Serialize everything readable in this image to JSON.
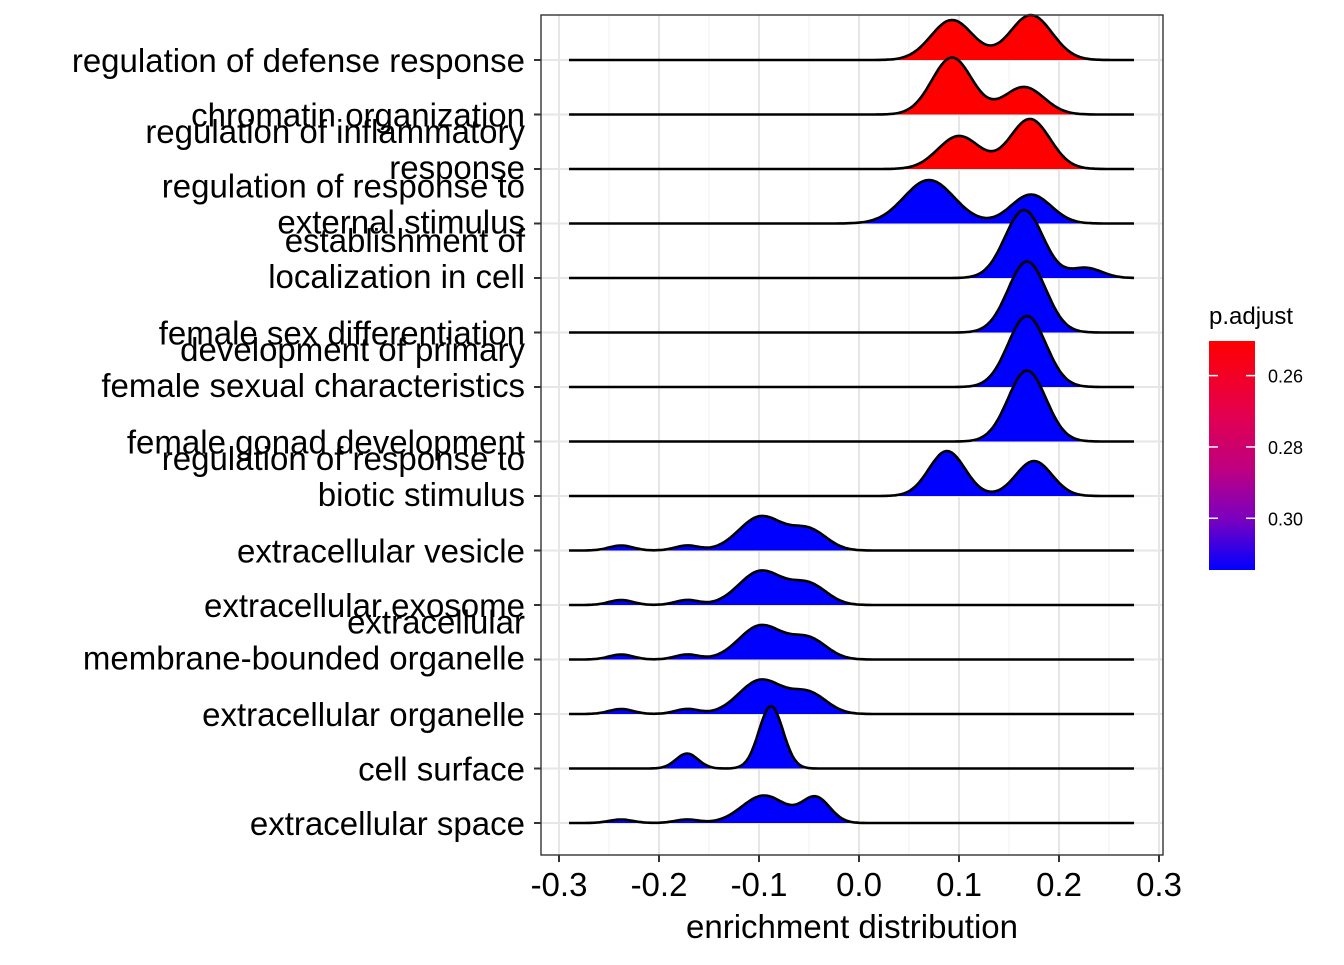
{
  "chart_data": {
    "type": "ridgeline",
    "xlabel": "enrichment distribution",
    "xlim": [
      -0.31,
      0.3
    ],
    "x_ticks": [
      -0.3,
      -0.2,
      -0.1,
      0.0,
      0.1,
      0.2,
      0.3
    ],
    "x_tick_labels": [
      "-0.3",
      "-0.2",
      "-0.1",
      "0.0",
      "0.1",
      "0.2",
      "0.3"
    ],
    "grid": true,
    "legend": {
      "title": "p.adjust",
      "position": "right",
      "type": "colorbar",
      "range": [
        0.2503,
        0.3145
      ],
      "ticks": [
        0.26,
        0.28,
        0.3
      ],
      "tick_labels": [
        "0.26",
        "0.28",
        "0.30"
      ],
      "low_color": "#FF0000",
      "high_color": "#0000FF"
    },
    "ridge_range": [
      -0.29,
      0.275
    ],
    "series": [
      {
        "label_lines": [
          "regulation of defense response"
        ],
        "color": "#FF0000",
        "peaks": [
          [
            0.093,
            0.021,
            0.8
          ],
          [
            0.172,
            0.021,
            0.9
          ]
        ]
      },
      {
        "label_lines": [
          "chromatin organization"
        ],
        "color": "#FF0000",
        "peaks": [
          [
            0.093,
            0.02,
            1.14
          ],
          [
            0.165,
            0.02,
            0.55
          ]
        ]
      },
      {
        "label_lines": [
          "regulation of inflammatory",
          "response"
        ],
        "color": "#FF0000",
        "peaks": [
          [
            0.1,
            0.021,
            0.66
          ],
          [
            0.171,
            0.02,
            1.0
          ]
        ]
      },
      {
        "label_lines": [
          "regulation of response to",
          "external stimulus"
        ],
        "color": "#0000FF",
        "peaks": [
          [
            0.07,
            0.025,
            0.87
          ],
          [
            0.172,
            0.02,
            0.58
          ]
        ]
      },
      {
        "label_lines": [
          "establishment of",
          "localization in cell"
        ],
        "color": "#0000FF",
        "peaks": [
          [
            0.165,
            0.019,
            1.36
          ],
          [
            0.227,
            0.016,
            0.2
          ]
        ]
      },
      {
        "label_lines": [
          "female sex differentiation"
        ],
        "color": "#0000FF",
        "peaks": [
          [
            0.168,
            0.019,
            1.42
          ]
        ]
      },
      {
        "label_lines": [
          "development of primary",
          "female sexual characteristics"
        ],
        "color": "#0000FF",
        "peaks": [
          [
            0.168,
            0.019,
            1.42
          ]
        ]
      },
      {
        "label_lines": [
          "female gonad development"
        ],
        "color": "#0000FF",
        "peaks": [
          [
            0.168,
            0.019,
            1.42
          ]
        ]
      },
      {
        "label_lines": [
          "regulation of response to",
          "biotic stimulus"
        ],
        "color": "#0000FF",
        "peaks": [
          [
            0.088,
            0.018,
            0.9
          ],
          [
            0.175,
            0.018,
            0.7
          ]
        ]
      },
      {
        "label_lines": [
          "extracellular vesicle"
        ],
        "color": "#0000FF",
        "peaks": [
          [
            -0.238,
            0.012,
            0.1
          ],
          [
            -0.172,
            0.012,
            0.1
          ],
          [
            -0.098,
            0.022,
            0.68
          ],
          [
            -0.05,
            0.018,
            0.4
          ]
        ]
      },
      {
        "label_lines": [
          "extracellular exosome"
        ],
        "color": "#0000FF",
        "peaks": [
          [
            -0.238,
            0.012,
            0.1
          ],
          [
            -0.172,
            0.012,
            0.1
          ],
          [
            -0.098,
            0.022,
            0.68
          ],
          [
            -0.05,
            0.018,
            0.4
          ]
        ]
      },
      {
        "label_lines": [
          "extracellular",
          "membrane-bounded organelle"
        ],
        "color": "#0000FF",
        "peaks": [
          [
            -0.238,
            0.012,
            0.1
          ],
          [
            -0.172,
            0.012,
            0.1
          ],
          [
            -0.098,
            0.022,
            0.68
          ],
          [
            -0.05,
            0.018,
            0.4
          ]
        ]
      },
      {
        "label_lines": [
          "extracellular organelle"
        ],
        "color": "#0000FF",
        "peaks": [
          [
            -0.238,
            0.012,
            0.1
          ],
          [
            -0.172,
            0.012,
            0.1
          ],
          [
            -0.098,
            0.022,
            0.68
          ],
          [
            -0.05,
            0.018,
            0.4
          ]
        ]
      },
      {
        "label_lines": [
          "cell surface"
        ],
        "color": "#0000FF",
        "peaks": [
          [
            -0.172,
            0.011,
            0.3
          ],
          [
            -0.088,
            0.012,
            1.25
          ]
        ]
      },
      {
        "label_lines": [
          "extracellular space"
        ],
        "color": "#0000FF",
        "peaks": [
          [
            -0.238,
            0.012,
            0.07
          ],
          [
            -0.172,
            0.012,
            0.07
          ],
          [
            -0.095,
            0.022,
            0.55
          ],
          [
            -0.043,
            0.014,
            0.5
          ]
        ]
      }
    ]
  }
}
